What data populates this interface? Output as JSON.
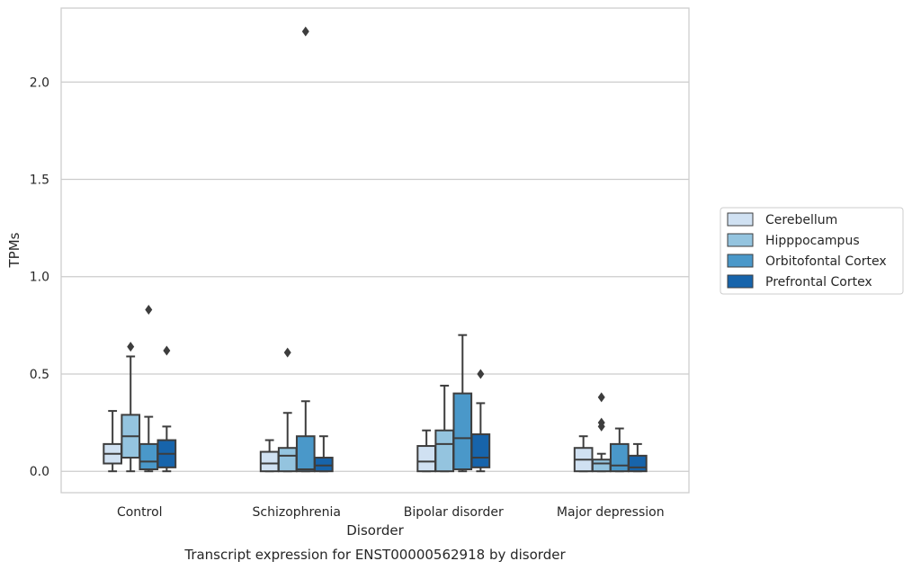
{
  "chart_data": {
    "type": "box",
    "title": "Transcript expression for ENST00000562918 by disorder",
    "xlabel": "Disorder",
    "ylabel": "TPMs",
    "ylim": [
      -0.11,
      2.38
    ],
    "yticks": [
      0.0,
      0.5,
      1.0,
      1.5,
      2.0
    ],
    "ytick_labels": [
      "0.0",
      "0.5",
      "1.0",
      "1.5",
      "2.0"
    ],
    "grid": "horizontal",
    "legend_position": "right",
    "categories": [
      "Control",
      "Schizophrenia",
      "Bipolar disorder",
      "Major depression"
    ],
    "series": [
      {
        "name": "Cerebellum",
        "color": "#d0e1f2",
        "boxes": [
          {
            "whisker_low": 0.0,
            "q1": 0.04,
            "median": 0.09,
            "q3": 0.14,
            "whisker_high": 0.31,
            "outliers": []
          },
          {
            "whisker_low": 0.0,
            "q1": 0.0,
            "median": 0.04,
            "q3": 0.1,
            "whisker_high": 0.16,
            "outliers": []
          },
          {
            "whisker_low": 0.0,
            "q1": 0.0,
            "median": 0.05,
            "q3": 0.13,
            "whisker_high": 0.21,
            "outliers": []
          },
          {
            "whisker_low": 0.0,
            "q1": 0.0,
            "median": 0.06,
            "q3": 0.12,
            "whisker_high": 0.18,
            "outliers": []
          }
        ]
      },
      {
        "name": "Hipppocampus",
        "color": "#94c4df",
        "boxes": [
          {
            "whisker_low": 0.0,
            "q1": 0.07,
            "median": 0.18,
            "q3": 0.29,
            "whisker_high": 0.59,
            "outliers": [
              0.64
            ]
          },
          {
            "whisker_low": 0.0,
            "q1": 0.0,
            "median": 0.08,
            "q3": 0.12,
            "whisker_high": 0.3,
            "outliers": [
              0.61
            ]
          },
          {
            "whisker_low": 0.0,
            "q1": 0.0,
            "median": 0.14,
            "q3": 0.21,
            "whisker_high": 0.44,
            "outliers": []
          },
          {
            "whisker_low": 0.0,
            "q1": 0.0,
            "median": 0.04,
            "q3": 0.06,
            "whisker_high": 0.09,
            "outliers": [
              0.23,
              0.25,
              0.38
            ]
          }
        ]
      },
      {
        "name": "Orbitofontal Cortex",
        "color": "#4a98c9",
        "boxes": [
          {
            "whisker_low": 0.0,
            "q1": 0.01,
            "median": 0.05,
            "q3": 0.14,
            "whisker_high": 0.28,
            "outliers": [
              0.83
            ]
          },
          {
            "whisker_low": 0.0,
            "q1": 0.0,
            "median": 0.01,
            "q3": 0.18,
            "whisker_high": 0.36,
            "outliers": [
              2.26
            ]
          },
          {
            "whisker_low": 0.0,
            "q1": 0.01,
            "median": 0.17,
            "q3": 0.4,
            "whisker_high": 0.7,
            "outliers": []
          },
          {
            "whisker_low": 0.0,
            "q1": 0.0,
            "median": 0.03,
            "q3": 0.14,
            "whisker_high": 0.22,
            "outliers": []
          }
        ]
      },
      {
        "name": "Prefrontal Cortex",
        "color": "#1764ab",
        "boxes": [
          {
            "whisker_low": 0.0,
            "q1": 0.02,
            "median": 0.09,
            "q3": 0.16,
            "whisker_high": 0.23,
            "outliers": [
              0.62
            ]
          },
          {
            "whisker_low": 0.0,
            "q1": 0.0,
            "median": 0.03,
            "q3": 0.07,
            "whisker_high": 0.18,
            "outliers": []
          },
          {
            "whisker_low": 0.0,
            "q1": 0.02,
            "median": 0.07,
            "q3": 0.19,
            "whisker_high": 0.35,
            "outliers": [
              0.5
            ]
          },
          {
            "whisker_low": 0.0,
            "q1": 0.0,
            "median": 0.02,
            "q3": 0.08,
            "whisker_high": 0.14,
            "outliers": []
          }
        ]
      }
    ]
  }
}
